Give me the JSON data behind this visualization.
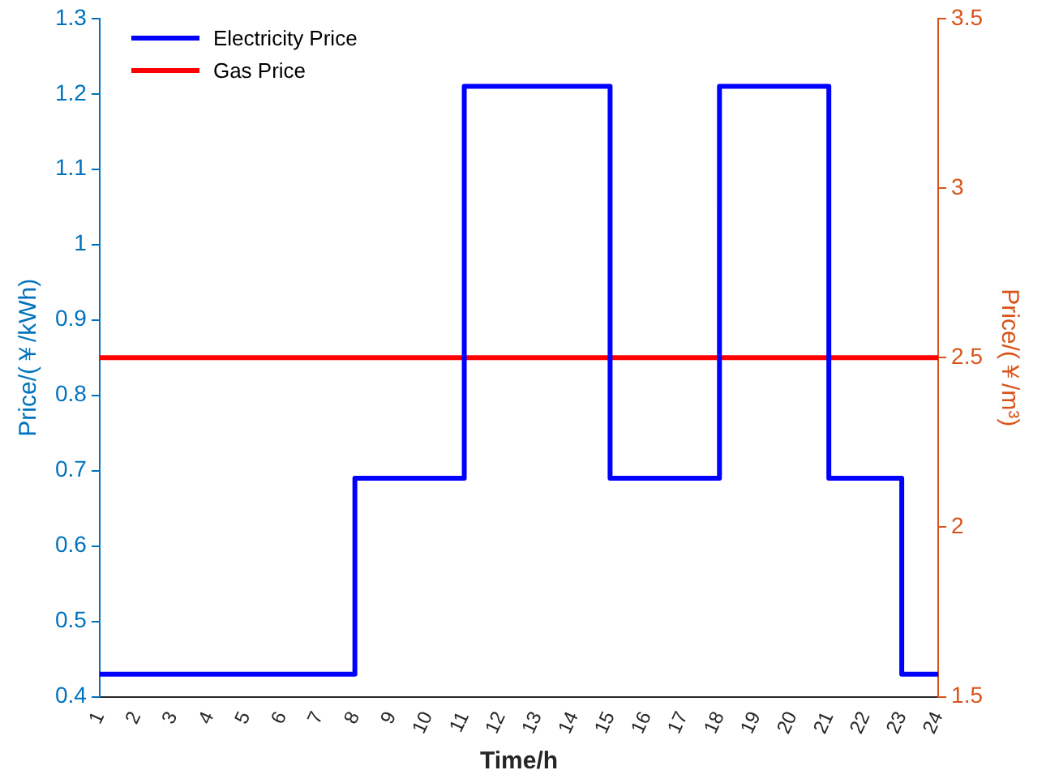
{
  "chart_data": {
    "type": "step",
    "xlabel": "Time/h",
    "ylabel": "Price/(￥/kWh)",
    "y2label": "Price/(￥/m³)",
    "categories": [
      "1",
      "2",
      "3",
      "4",
      "5",
      "6",
      "7",
      "8",
      "9",
      "10",
      "11",
      "12",
      "13",
      "14",
      "15",
      "16",
      "17",
      "18",
      "19",
      "20",
      "21",
      "22",
      "23",
      "24"
    ],
    "series": [
      {
        "name": "Electricity Price",
        "type": "step",
        "color": "#0000ff",
        "values": [
          0.43,
          0.43,
          0.43,
          0.43,
          0.43,
          0.43,
          0.43,
          0.69,
          0.69,
          0.69,
          1.21,
          1.21,
          1.21,
          1.21,
          0.69,
          0.69,
          0.69,
          1.21,
          1.21,
          1.21,
          0.69,
          0.69,
          0.43,
          0.43
        ]
      },
      {
        "name": "Gas Price",
        "type": "line",
        "axis": "y2",
        "color": "#ff0000",
        "values": [
          2.5,
          2.5,
          2.5,
          2.5,
          2.5,
          2.5,
          2.5,
          2.5,
          2.5,
          2.5,
          2.5,
          2.5,
          2.5,
          2.5,
          2.5,
          2.5,
          2.5,
          2.5,
          2.5,
          2.5,
          2.5,
          2.5,
          2.5,
          2.5
        ]
      }
    ],
    "ylim": [
      0.4,
      1.3
    ],
    "yticks": [
      0.4,
      0.5,
      0.6,
      0.7,
      0.8,
      0.9,
      1,
      1.1,
      1.2,
      1.3
    ],
    "y2lim": [
      1.5,
      3.5
    ],
    "y2ticks": [
      1.5,
      2,
      2.5,
      3,
      3.5
    ],
    "grid": false,
    "legend": "top left"
  }
}
